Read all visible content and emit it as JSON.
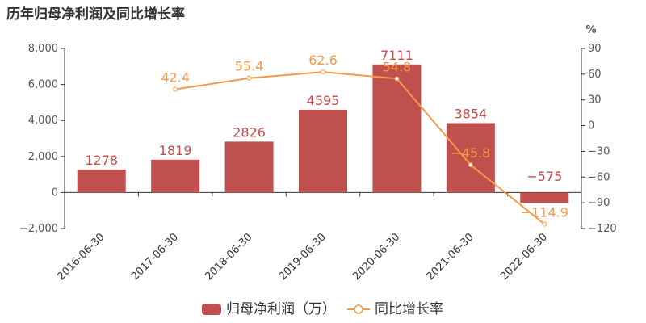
{
  "title": "历年归母净利润及同比增长率",
  "colors": {
    "bar": "#c0504d",
    "line": "#f59a4b",
    "axis": "#333333"
  },
  "chart_data": {
    "type": "bar",
    "title": "历年归母净利润及同比增长率",
    "categories": [
      "2016-06-30",
      "2017-06-30",
      "2018-06-30",
      "2019-06-30",
      "2020-06-30",
      "2021-06-30",
      "2022-06-30"
    ],
    "series": [
      {
        "name": "归母净利润（万）",
        "type": "bar",
        "axis": "left",
        "values": [
          1278,
          1819,
          2826,
          4595,
          7111,
          3854,
          -575
        ],
        "labels": [
          "1278",
          "1819",
          "2826",
          "4595",
          "7111",
          "3854",
          "−575"
        ]
      },
      {
        "name": "同比增长率",
        "type": "line",
        "axis": "right",
        "values": [
          null,
          42.4,
          55.4,
          62.6,
          54.8,
          -45.8,
          -114.9
        ],
        "labels": [
          "",
          "42.4",
          "55.4",
          "62.6",
          "54.8",
          "−45.8",
          "−114.9"
        ]
      }
    ],
    "y_left": {
      "min": -2000,
      "max": 8000,
      "ticks": [
        -2000,
        0,
        2000,
        4000,
        6000,
        8000
      ],
      "tick_labels": [
        "−2,000",
        "0",
        "2,000",
        "4,000",
        "6,000",
        "8,000"
      ]
    },
    "y_right": {
      "min": -120,
      "max": 90,
      "unit": "%",
      "ticks": [
        -120,
        -90,
        -60,
        -30,
        0,
        30,
        60,
        90
      ],
      "tick_labels": [
        "−120",
        "−90",
        "−60",
        "−30",
        "0",
        "30",
        "60",
        "90"
      ]
    },
    "grid": false,
    "legend_position": "bottom"
  }
}
